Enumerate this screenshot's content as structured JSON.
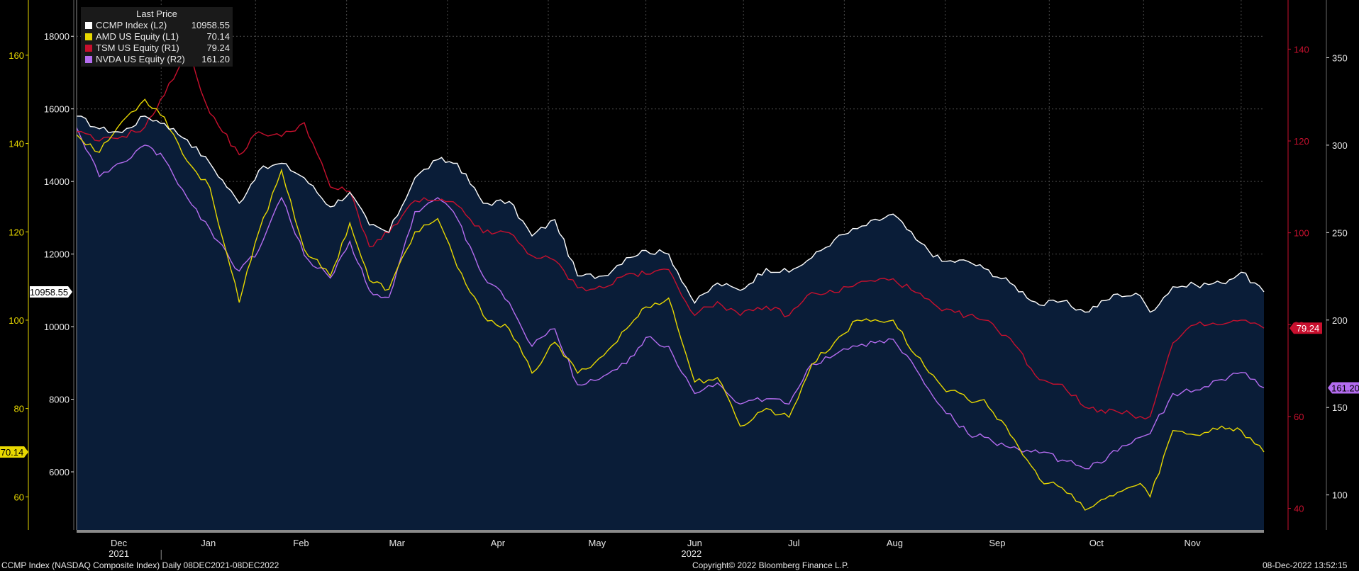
{
  "chart_data": {
    "type": "line",
    "date_range": [
      "2021-12-08",
      "2022-12-08"
    ],
    "x_month_labels": [
      "Dec",
      "Jan",
      "Feb",
      "Mar",
      "Apr",
      "May",
      "Jun",
      "Jul",
      "Aug",
      "Sep",
      "Oct",
      "Nov"
    ],
    "x_year_labels": [
      "2021",
      "2022"
    ],
    "legend": {
      "header": "Last Price",
      "placement": "top-left",
      "entries": [
        {
          "name": "CCMP Index  (L2)",
          "value": "10958.55",
          "color": "#ffffff"
        },
        {
          "name": "AMD US Equity  (L1)",
          "value": "70.14",
          "color": "#e8d800"
        },
        {
          "name": "TSM US Equity  (R1)",
          "value": "79.24",
          "color": "#c8102e"
        },
        {
          "name": "NVDA US Equity  (R2)",
          "value": "161.20",
          "color": "#b46cf0"
        }
      ]
    },
    "axes": {
      "L1": {
        "series": "AMD US Equity",
        "color": "#e8d800",
        "ticks": [
          60,
          80,
          100,
          120,
          140,
          160
        ],
        "range": [
          52.5,
          172.5
        ]
      },
      "L2": {
        "series": "CCMP Index",
        "color": "#e6e6e6",
        "ticks": [
          6000,
          8000,
          10000,
          12000,
          14000,
          16000,
          18000
        ],
        "range": [
          4400,
          19000
        ]
      },
      "R1": {
        "series": "TSM US Equity",
        "color": "#c8102e",
        "ticks": [
          40,
          60,
          80,
          100,
          120,
          140
        ],
        "range": [
          35.3,
          150.7
        ]
      },
      "R2": {
        "series": "NVDA US Equity",
        "color": "#e6e6e6",
        "ticks": [
          100,
          150,
          200,
          250,
          300,
          350
        ],
        "range": [
          80,
          383
        ]
      }
    },
    "grid": true,
    "series": [
      {
        "name": "CCMP Index",
        "axis": "L2",
        "color": "#ffffff",
        "fill": "#0a1d38",
        "last_label": "10958.55",
        "points": [
          [
            "2021-12-08",
            15800
          ],
          [
            "2021-12-15",
            15450
          ],
          [
            "2021-12-22",
            15350
          ],
          [
            "2021-12-29",
            15800
          ],
          [
            "2022-01-04",
            15600
          ],
          [
            "2022-01-11",
            15150
          ],
          [
            "2022-01-18",
            14500
          ],
          [
            "2022-01-27",
            13400
          ],
          [
            "2022-02-02",
            14300
          ],
          [
            "2022-02-09",
            14500
          ],
          [
            "2022-02-16",
            14100
          ],
          [
            "2022-02-24",
            13300
          ],
          [
            "2022-03-02",
            13700
          ],
          [
            "2022-03-08",
            12800
          ],
          [
            "2022-03-14",
            12600
          ],
          [
            "2022-03-22",
            14100
          ],
          [
            "2022-03-29",
            14600
          ],
          [
            "2022-04-04",
            14500
          ],
          [
            "2022-04-12",
            13400
          ],
          [
            "2022-04-20",
            13450
          ],
          [
            "2022-04-27",
            12500
          ],
          [
            "2022-05-04",
            12950
          ],
          [
            "2022-05-11",
            11400
          ],
          [
            "2022-05-19",
            11400
          ],
          [
            "2022-05-26",
            11900
          ],
          [
            "2022-06-01",
            12100
          ],
          [
            "2022-06-08",
            12000
          ],
          [
            "2022-06-16",
            10650
          ],
          [
            "2022-06-23",
            11200
          ],
          [
            "2022-06-30",
            11000
          ],
          [
            "2022-07-08",
            11600
          ],
          [
            "2022-07-15",
            11500
          ],
          [
            "2022-07-22",
            11900
          ],
          [
            "2022-07-29",
            12400
          ],
          [
            "2022-08-05",
            12700
          ],
          [
            "2022-08-16",
            13100
          ],
          [
            "2022-08-23",
            12400
          ],
          [
            "2022-08-31",
            11800
          ],
          [
            "2022-09-08",
            11800
          ],
          [
            "2022-09-13",
            11600
          ],
          [
            "2022-09-21",
            11200
          ],
          [
            "2022-09-30",
            10600
          ],
          [
            "2022-10-07",
            10700
          ],
          [
            "2022-10-14",
            10400
          ],
          [
            "2022-10-24",
            10900
          ],
          [
            "2022-10-31",
            10850
          ],
          [
            "2022-11-03",
            10400
          ],
          [
            "2022-11-10",
            11100
          ],
          [
            "2022-11-17",
            11150
          ],
          [
            "2022-11-25",
            11200
          ],
          [
            "2022-12-01",
            11500
          ],
          [
            "2022-12-08",
            10958.55
          ]
        ]
      },
      {
        "name": "AMD US Equity",
        "axis": "L1",
        "color": "#e8d800",
        "last_label": "70.14",
        "points": [
          [
            "2021-12-08",
            142
          ],
          [
            "2021-12-15",
            138
          ],
          [
            "2021-12-22",
            145
          ],
          [
            "2021-12-29",
            150
          ],
          [
            "2022-01-04",
            146
          ],
          [
            "2022-01-11",
            136
          ],
          [
            "2022-01-18",
            130
          ],
          [
            "2022-01-27",
            104
          ],
          [
            "2022-02-02",
            120
          ],
          [
            "2022-02-09",
            134
          ],
          [
            "2022-02-16",
            116
          ],
          [
            "2022-02-24",
            110
          ],
          [
            "2022-03-02",
            122
          ],
          [
            "2022-03-08",
            109
          ],
          [
            "2022-03-14",
            107
          ],
          [
            "2022-03-22",
            120
          ],
          [
            "2022-03-29",
            123
          ],
          [
            "2022-04-04",
            112
          ],
          [
            "2022-04-12",
            101
          ],
          [
            "2022-04-20",
            98
          ],
          [
            "2022-04-27",
            88
          ],
          [
            "2022-05-04",
            95
          ],
          [
            "2022-05-11",
            88
          ],
          [
            "2022-05-19",
            92
          ],
          [
            "2022-05-26",
            98
          ],
          [
            "2022-06-01",
            103
          ],
          [
            "2022-06-08",
            105
          ],
          [
            "2022-06-16",
            86
          ],
          [
            "2022-06-23",
            87
          ],
          [
            "2022-06-30",
            76
          ],
          [
            "2022-07-08",
            80
          ],
          [
            "2022-07-15",
            78
          ],
          [
            "2022-07-22",
            90
          ],
          [
            "2022-07-29",
            95
          ],
          [
            "2022-08-05",
            100
          ],
          [
            "2022-08-16",
            100
          ],
          [
            "2022-08-23",
            92
          ],
          [
            "2022-08-31",
            85
          ],
          [
            "2022-09-08",
            82
          ],
          [
            "2022-09-13",
            82
          ],
          [
            "2022-09-21",
            74
          ],
          [
            "2022-09-30",
            64
          ],
          [
            "2022-10-07",
            62
          ],
          [
            "2022-10-14",
            57
          ],
          [
            "2022-10-24",
            61
          ],
          [
            "2022-10-31",
            63
          ],
          [
            "2022-11-03",
            60
          ],
          [
            "2022-11-10",
            75
          ],
          [
            "2022-11-17",
            74
          ],
          [
            "2022-11-25",
            76
          ],
          [
            "2022-12-01",
            75
          ],
          [
            "2022-12-08",
            70.14
          ]
        ]
      },
      {
        "name": "TSM US Equity",
        "axis": "R1",
        "color": "#c8102e",
        "last_label": "79.24",
        "points": [
          [
            "2021-12-08",
            122
          ],
          [
            "2021-12-15",
            120
          ],
          [
            "2021-12-22",
            121
          ],
          [
            "2021-12-29",
            123
          ],
          [
            "2022-01-04",
            130
          ],
          [
            "2022-01-11",
            140
          ],
          [
            "2022-01-18",
            126
          ],
          [
            "2022-01-27",
            117
          ],
          [
            "2022-02-02",
            122
          ],
          [
            "2022-02-09",
            121
          ],
          [
            "2022-02-16",
            124
          ],
          [
            "2022-02-24",
            110
          ],
          [
            "2022-03-02",
            109
          ],
          [
            "2022-03-08",
            97
          ],
          [
            "2022-03-14",
            100
          ],
          [
            "2022-03-22",
            107
          ],
          [
            "2022-03-29",
            107
          ],
          [
            "2022-04-04",
            106
          ],
          [
            "2022-04-12",
            100
          ],
          [
            "2022-04-20",
            100
          ],
          [
            "2022-04-27",
            95
          ],
          [
            "2022-05-04",
            94
          ],
          [
            "2022-05-11",
            88
          ],
          [
            "2022-05-19",
            88
          ],
          [
            "2022-05-26",
            91
          ],
          [
            "2022-06-01",
            91
          ],
          [
            "2022-06-08",
            92
          ],
          [
            "2022-06-16",
            82
          ],
          [
            "2022-06-23",
            85
          ],
          [
            "2022-06-30",
            82
          ],
          [
            "2022-07-08",
            84
          ],
          [
            "2022-07-15",
            82
          ],
          [
            "2022-07-22",
            87
          ],
          [
            "2022-07-29",
            87
          ],
          [
            "2022-08-05",
            89
          ],
          [
            "2022-08-16",
            90
          ],
          [
            "2022-08-23",
            87
          ],
          [
            "2022-08-31",
            83
          ],
          [
            "2022-09-08",
            82
          ],
          [
            "2022-09-13",
            81
          ],
          [
            "2022-09-21",
            77
          ],
          [
            "2022-09-30",
            68
          ],
          [
            "2022-10-07",
            67
          ],
          [
            "2022-10-14",
            62
          ],
          [
            "2022-10-24",
            61
          ],
          [
            "2022-10-31",
            60
          ],
          [
            "2022-11-03",
            60
          ],
          [
            "2022-11-10",
            76
          ],
          [
            "2022-11-17",
            80
          ],
          [
            "2022-11-25",
            80
          ],
          [
            "2022-12-01",
            81
          ],
          [
            "2022-12-08",
            79.24
          ]
        ]
      },
      {
        "name": "NVDA US Equity",
        "axis": "R2",
        "color": "#b46cf0",
        "last_label": "161.20",
        "points": [
          [
            "2021-12-08",
            310
          ],
          [
            "2021-12-15",
            282
          ],
          [
            "2021-12-22",
            290
          ],
          [
            "2021-12-29",
            300
          ],
          [
            "2022-01-04",
            292
          ],
          [
            "2022-01-11",
            270
          ],
          [
            "2022-01-18",
            252
          ],
          [
            "2022-01-27",
            228
          ],
          [
            "2022-02-02",
            240
          ],
          [
            "2022-02-09",
            270
          ],
          [
            "2022-02-16",
            237
          ],
          [
            "2022-02-24",
            224
          ],
          [
            "2022-03-02",
            245
          ],
          [
            "2022-03-08",
            217
          ],
          [
            "2022-03-14",
            213
          ],
          [
            "2022-03-22",
            262
          ],
          [
            "2022-03-29",
            270
          ],
          [
            "2022-04-04",
            258
          ],
          [
            "2022-04-12",
            225
          ],
          [
            "2022-04-20",
            210
          ],
          [
            "2022-04-27",
            185
          ],
          [
            "2022-05-04",
            195
          ],
          [
            "2022-05-11",
            163
          ],
          [
            "2022-05-19",
            168
          ],
          [
            "2022-05-26",
            175
          ],
          [
            "2022-06-01",
            190
          ],
          [
            "2022-06-08",
            185
          ],
          [
            "2022-06-16",
            158
          ],
          [
            "2022-06-23",
            164
          ],
          [
            "2022-06-30",
            152
          ],
          [
            "2022-07-08",
            155
          ],
          [
            "2022-07-15",
            152
          ],
          [
            "2022-07-22",
            175
          ],
          [
            "2022-07-29",
            180
          ],
          [
            "2022-08-05",
            185
          ],
          [
            "2022-08-16",
            189
          ],
          [
            "2022-08-23",
            172
          ],
          [
            "2022-08-31",
            150
          ],
          [
            "2022-09-08",
            135
          ],
          [
            "2022-09-13",
            133
          ],
          [
            "2022-09-21",
            127
          ],
          [
            "2022-09-30",
            124
          ],
          [
            "2022-10-07",
            120
          ],
          [
            "2022-10-14",
            115
          ],
          [
            "2022-10-24",
            125
          ],
          [
            "2022-10-31",
            133
          ],
          [
            "2022-11-03",
            135
          ],
          [
            "2022-11-10",
            158
          ],
          [
            "2022-11-17",
            160
          ],
          [
            "2022-11-25",
            166
          ],
          [
            "2022-12-01",
            170
          ],
          [
            "2022-12-08",
            161.2
          ]
        ]
      }
    ]
  },
  "footer": {
    "left": "CCMP Index (NASDAQ Composite Index)  Daily 08DEC2021-08DEC2022",
    "center": "Copyright© 2022 Bloomberg Finance L.P.",
    "right": "08-Dec-2022 13:52:15"
  }
}
